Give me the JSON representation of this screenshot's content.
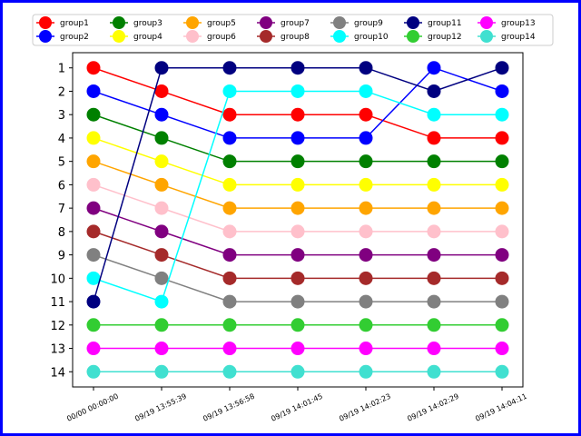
{
  "chart_data": {
    "type": "line",
    "x": [
      "00/00 00:00:00",
      "09/19 13:55:39",
      "09/19 13:56:58",
      "09/19 14:01:45",
      "09/19 14:02:23",
      "09/19 14:02:29",
      "09/19 14:04:11"
    ],
    "yticks": [
      1,
      2,
      3,
      4,
      5,
      6,
      7,
      8,
      9,
      10,
      11,
      12,
      13,
      14
    ],
    "ylim": [
      14.65,
      0.35
    ],
    "y_inverted": true,
    "grid": false,
    "legend_position": "top",
    "series": [
      {
        "name": "group1",
        "color": "#ff0000",
        "values": [
          1,
          2,
          3,
          3,
          3,
          4,
          4
        ]
      },
      {
        "name": "group2",
        "color": "#0000ff",
        "values": [
          2,
          3,
          4,
          4,
          4,
          1,
          2
        ]
      },
      {
        "name": "group3",
        "color": "#008000",
        "values": [
          3,
          4,
          5,
          5,
          5,
          5,
          5
        ]
      },
      {
        "name": "group4",
        "color": "#ffff00",
        "values": [
          4,
          5,
          6,
          6,
          6,
          6,
          6
        ]
      },
      {
        "name": "group5",
        "color": "#ffa500",
        "values": [
          5,
          6,
          7,
          7,
          7,
          7,
          7
        ]
      },
      {
        "name": "group6",
        "color": "#ffc0cb",
        "values": [
          6,
          7,
          8,
          8,
          8,
          8,
          8
        ]
      },
      {
        "name": "group7",
        "color": "#800080",
        "values": [
          7,
          8,
          9,
          9,
          9,
          9,
          9
        ]
      },
      {
        "name": "group8",
        "color": "#a52a2a",
        "values": [
          8,
          9,
          10,
          10,
          10,
          10,
          10
        ]
      },
      {
        "name": "group9",
        "color": "#808080",
        "values": [
          9,
          10,
          11,
          11,
          11,
          11,
          11
        ]
      },
      {
        "name": "group10",
        "color": "#00ffff",
        "values": [
          10,
          11,
          2,
          2,
          2,
          3,
          3
        ]
      },
      {
        "name": "group11",
        "color": "#000080",
        "values": [
          11,
          1,
          1,
          1,
          1,
          2,
          1
        ]
      },
      {
        "name": "group12",
        "color": "#32cd32",
        "values": [
          12,
          12,
          12,
          12,
          12,
          12,
          12
        ]
      },
      {
        "name": "group13",
        "color": "#ff00ff",
        "values": [
          13,
          13,
          13,
          13,
          13,
          13,
          13
        ]
      },
      {
        "name": "group14",
        "color": "#40e0d0",
        "values": [
          14,
          14,
          14,
          14,
          14,
          14,
          14
        ]
      }
    ]
  }
}
